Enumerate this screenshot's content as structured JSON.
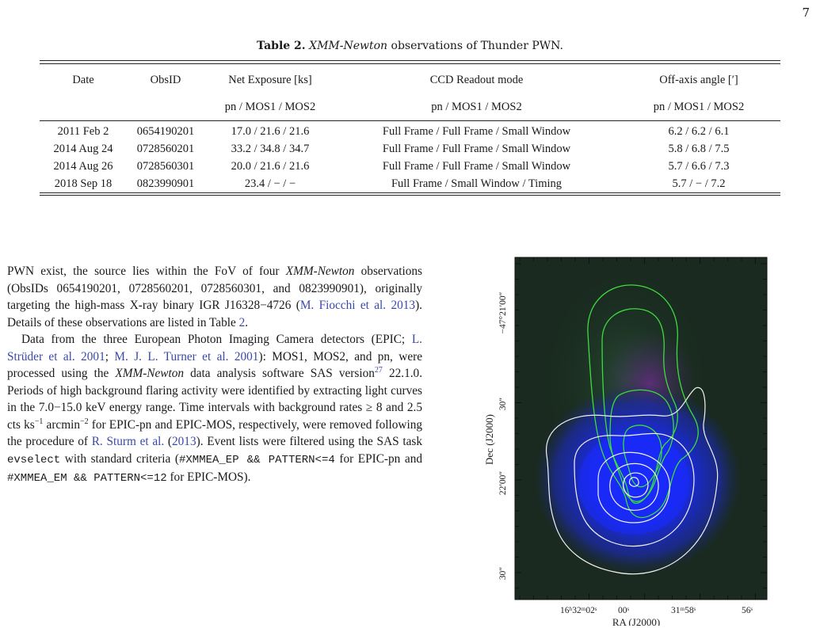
{
  "page_number": "7",
  "table": {
    "label": "Table 2.",
    "caption_italic": "XMM-Newton",
    "caption_rest": " observations of Thunder PWN.",
    "headers": [
      "Date",
      "ObsID",
      "Net Exposure [ks]",
      "CCD Readout mode",
      "Off-axis angle [′]"
    ],
    "subheaders": [
      "",
      "",
      "pn / MOS1 / MOS2",
      "pn / MOS1 / MOS2",
      "pn / MOS1 / MOS2"
    ],
    "rows": [
      [
        "2011 Feb 2",
        "0654190201",
        "17.0  /  21.6  /  21.6",
        "Full Frame  /  Full Frame  /  Small Window",
        "6.2  /  6.2  /  6.1"
      ],
      [
        "2014 Aug 24",
        "0728560201",
        "33.2  /  34.8  /  34.7",
        "Full Frame  /  Full Frame  /  Small Window",
        "5.8  /  6.8  /  7.5"
      ],
      [
        "2014 Aug 26",
        "0728560301",
        "20.0  /  21.6  /  21.6",
        "Full Frame  /  Full Frame  /  Small Window",
        "5.7  /  6.6  /  7.3"
      ],
      [
        "2018 Sep 18",
        "0823990901",
        "23.4  /  −  /  −",
        "Full Frame  /  Small Window  /  Timing",
        "5.7  /  −  /  7.2"
      ]
    ]
  },
  "para1": {
    "t1": "PWN exist, the source lies within the FoV of four ",
    "i1": "XMM-Newton",
    "t2": " observations (ObsIDs 0654190201, 0728560201, 0728560301, and 0823990901), originally targeting the high-mass X-ray binary IGR J16328−4726 (",
    "c1": "M. Fiocchi et al. 2013",
    "t3": "). Details of these observations are listed in Table ",
    "c2": "2",
    "t4": "."
  },
  "para2": {
    "t1": "Data from the three European Photon Imaging Camera detectors (EPIC; ",
    "c1": "L. Strüder et al. 2001",
    "t2": "; ",
    "c2": "M. J. L. Turner et al. 2001",
    "t3": "): MOS1, MOS2, and pn, were processed using the ",
    "i1": "XMM-Newton",
    "t4": " data analysis software SAS version",
    "sup1": "27",
    "t5": " 22.1.0. Periods of high background flaring activity were identified by extracting light curves in the 7.0−15.0 keV energy range. Time intervals with background rates ≥ 8 and 2.5 cts ks",
    "sup2": "−1",
    "t6": " arcmin",
    "sup3": "−2",
    "t7": " for EPIC-pn and EPIC-MOS, respectively, were removed following the procedure of ",
    "c3": "R. Sturm et al.",
    "t8": " (",
    "c4": "2013",
    "t9": "). Event lists were filtered using the SAS task ",
    "m1": "evselect",
    "t10": " with standard criteria (",
    "m2": "#XMMEA_EP && PATTERN<=4",
    "t11": " for EPIC-pn and ",
    "m3": "#XMMEA_EM && PATTERN<=12",
    "t12": " for EPIC-MOS)."
  },
  "figure": {
    "xlabel": "RA (J2000)",
    "ylabel": "Dec (J2000)",
    "xticks": [
      "16ʰ32ᵐ02ˢ",
      "00ˢ",
      "31ᵐ58ˢ",
      "56ˢ"
    ],
    "yticks": [
      "−47°21′00″",
      "30″",
      "22′00″",
      "30″"
    ],
    "colors": {
      "contour_soft": "#3ddc3d",
      "contour_hard": "#f2f2f2",
      "image_core": "#1a2aff",
      "image_bg": "#1a2a20"
    }
  }
}
